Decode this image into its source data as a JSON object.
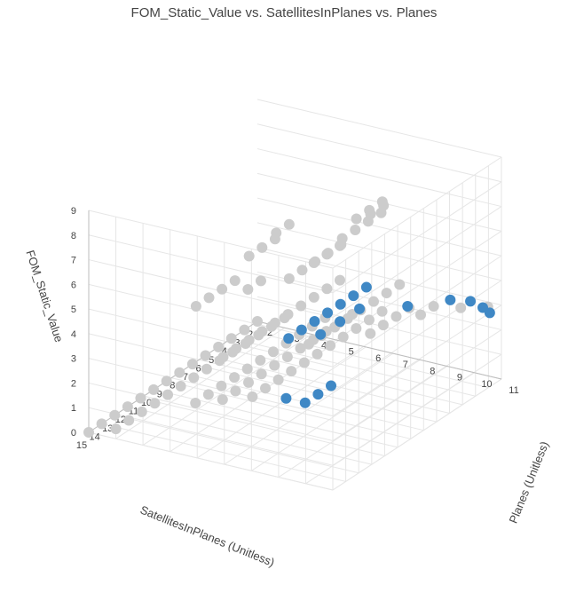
{
  "chart_data": {
    "type": "scatter3d",
    "title": "FOM_Static_Value vs. SatellitesInPlanes vs. Planes",
    "x_axis": {
      "label": "SatellitesInPlanes (Unitless)",
      "ticks": [
        "15",
        "14",
        "13",
        "12",
        "11",
        "10",
        "9",
        "8",
        "7",
        "6",
        "5",
        "4",
        "3",
        "2"
      ],
      "range": [
        2,
        15
      ]
    },
    "y_axis": {
      "label": "Planes (Unitless)",
      "ticks": [
        "2",
        "3",
        "4",
        "5",
        "6",
        "7",
        "8",
        "9",
        "10",
        "11"
      ],
      "range": [
        2,
        11
      ]
    },
    "z_axis": {
      "label": "FOM_Static_Value",
      "ticks": [
        "0",
        "1",
        "2",
        "3",
        "4",
        "5",
        "6",
        "7",
        "8",
        "9"
      ],
      "range": [
        0,
        9
      ]
    },
    "grid": true,
    "colors": {
      "highlight": "#3f88c5",
      "normal": "#cccccc",
      "grid": "#e6e6e6",
      "axis": "#bdbdbd"
    },
    "points": {
      "highlight": [
        [
          14,
          9.5,
          2.8
        ],
        [
          14,
          8.8,
          2.8
        ],
        [
          13,
          9.5,
          2.8
        ],
        [
          12,
          9.5,
          2.8
        ],
        [
          9,
          6.5,
          2.9
        ],
        [
          8,
          6.5,
          2.9
        ],
        [
          7,
          6.5,
          2.9
        ],
        [
          6,
          6.5,
          2.9
        ],
        [
          5,
          6.5,
          2.9
        ],
        [
          4,
          6.5,
          2.9
        ],
        [
          3,
          6.5,
          2.9
        ],
        [
          8,
          7.2,
          2.9
        ],
        [
          6.5,
          7.2,
          2.9
        ],
        [
          5,
          7.2,
          2.9
        ],
        [
          2.3,
          10,
          3
        ],
        [
          2.6,
          9.4,
          3
        ],
        [
          2.6,
          10.6,
          3
        ],
        [
          2.9,
          11,
          3
        ],
        [
          3.8,
          8.4,
          2.9
        ]
      ],
      "normal": [
        [
          15,
          2,
          0
        ],
        [
          14,
          2,
          0
        ],
        [
          13,
          2,
          0
        ],
        [
          12,
          2,
          0
        ],
        [
          11,
          2,
          0
        ],
        [
          10,
          2,
          0
        ],
        [
          9,
          2,
          0
        ],
        [
          8,
          2,
          0
        ],
        [
          7,
          2,
          0
        ],
        [
          6,
          2,
          0
        ],
        [
          5,
          2,
          0
        ],
        [
          4,
          2,
          0
        ],
        [
          3,
          2,
          0
        ],
        [
          2,
          2,
          0
        ],
        [
          15,
          3,
          0.4
        ],
        [
          14,
          3,
          0.4
        ],
        [
          13,
          3,
          0.4
        ],
        [
          12,
          3,
          0.4
        ],
        [
          11,
          3,
          0.4
        ],
        [
          10,
          3,
          0.4
        ],
        [
          9,
          3,
          0.4
        ],
        [
          8,
          3,
          0.4
        ],
        [
          7,
          3,
          0.4
        ],
        [
          6,
          3,
          0.4
        ],
        [
          5,
          3,
          0.4
        ],
        [
          4,
          3,
          0.4
        ],
        [
          3,
          3,
          0.4
        ],
        [
          2,
          3,
          0.4
        ],
        [
          12,
          4.5,
          0.8
        ],
        [
          11,
          4.5,
          0.8
        ],
        [
          10,
          4.5,
          0.8
        ],
        [
          9,
          4.5,
          0.8
        ],
        [
          8,
          4.5,
          0.8
        ],
        [
          7,
          4.5,
          0.8
        ],
        [
          6,
          4.5,
          0.8
        ],
        [
          5,
          4.5,
          0.8
        ],
        [
          4,
          4.5,
          0.8
        ],
        [
          3,
          4.5,
          0.8
        ],
        [
          2,
          4.5,
          0.8
        ],
        [
          12,
          5.5,
          1.2
        ],
        [
          11,
          5.5,
          1.2
        ],
        [
          10,
          5.5,
          1.2
        ],
        [
          9,
          5.5,
          1.2
        ],
        [
          8,
          5.5,
          1.2
        ],
        [
          7,
          5.5,
          1.2
        ],
        [
          6,
          5.5,
          1.2
        ],
        [
          5,
          5.5,
          1.2
        ],
        [
          4,
          5.5,
          1.2
        ],
        [
          3,
          5.5,
          1.2
        ],
        [
          2,
          5.5,
          1.2
        ],
        [
          12,
          6.6,
          1.6
        ],
        [
          11,
          6.6,
          1.6
        ],
        [
          10,
          6.6,
          1.6
        ],
        [
          9,
          6.6,
          1.6
        ],
        [
          8,
          6.6,
          1.6
        ],
        [
          7,
          6.6,
          1.6
        ],
        [
          6,
          6.6,
          1.6
        ],
        [
          5,
          6.6,
          1.6
        ],
        [
          4,
          6.6,
          1.6
        ],
        [
          3,
          6.6,
          1.6
        ],
        [
          2,
          6.6,
          1.6
        ],
        [
          5,
          7.6,
          2
        ],
        [
          4,
          7.6,
          2
        ],
        [
          3,
          7.6,
          2
        ],
        [
          2,
          7.6,
          2
        ],
        [
          3,
          8.5,
          2.3
        ],
        [
          2,
          8.5,
          2.3
        ],
        [
          2,
          9.5,
          2.5
        ],
        [
          2,
          10.5,
          2.8
        ],
        [
          13,
          6,
          3.4
        ],
        [
          12,
          6,
          3.4
        ],
        [
          11,
          6,
          3.4
        ],
        [
          10,
          6,
          3.4
        ],
        [
          9,
          6,
          3.4
        ],
        [
          8,
          6,
          3.4
        ],
        [
          7,
          6,
          3.4
        ],
        [
          6,
          6,
          3.4
        ],
        [
          5,
          6,
          3.4
        ],
        [
          4,
          6,
          3.4
        ],
        [
          11,
          8.2,
          3.8
        ],
        [
          10,
          8.2,
          3.8
        ],
        [
          9,
          8.2,
          3.8
        ],
        [
          8,
          8.2,
          3.8
        ],
        [
          7,
          8.2,
          3.8
        ],
        [
          6,
          8.2,
          3.8
        ],
        [
          5,
          8.2,
          3.8
        ],
        [
          4,
          8.2,
          3.8
        ],
        [
          13,
          5,
          5.2
        ],
        [
          12,
          5,
          5.2
        ],
        [
          11,
          5,
          5.2
        ],
        [
          10,
          5,
          5.2
        ],
        [
          10,
          7,
          5.8
        ],
        [
          9,
          7,
          5.8
        ],
        [
          8,
          7,
          5.8
        ],
        [
          7,
          7,
          5.8
        ],
        [
          6,
          7,
          5.8
        ],
        [
          11,
          6,
          6.8
        ],
        [
          10,
          6,
          6.8
        ],
        [
          9,
          6,
          6.8
        ],
        [
          8,
          8,
          7
        ],
        [
          7,
          8,
          7
        ],
        [
          6,
          8,
          7
        ],
        [
          5,
          8,
          7
        ],
        [
          11,
          7,
          8
        ],
        [
          10,
          7,
          8
        ],
        [
          9,
          9,
          8.4
        ],
        [
          8,
          9,
          8.4
        ],
        [
          7,
          9,
          8.4
        ],
        [
          10,
          10,
          9.2
        ],
        [
          9,
          10,
          9.2
        ],
        [
          6,
          6,
          4.8
        ],
        [
          5,
          6,
          4.8
        ],
        [
          4,
          6,
          4.8
        ],
        [
          9,
          5,
          4.5
        ],
        [
          8,
          5,
          4.5
        ]
      ]
    }
  }
}
